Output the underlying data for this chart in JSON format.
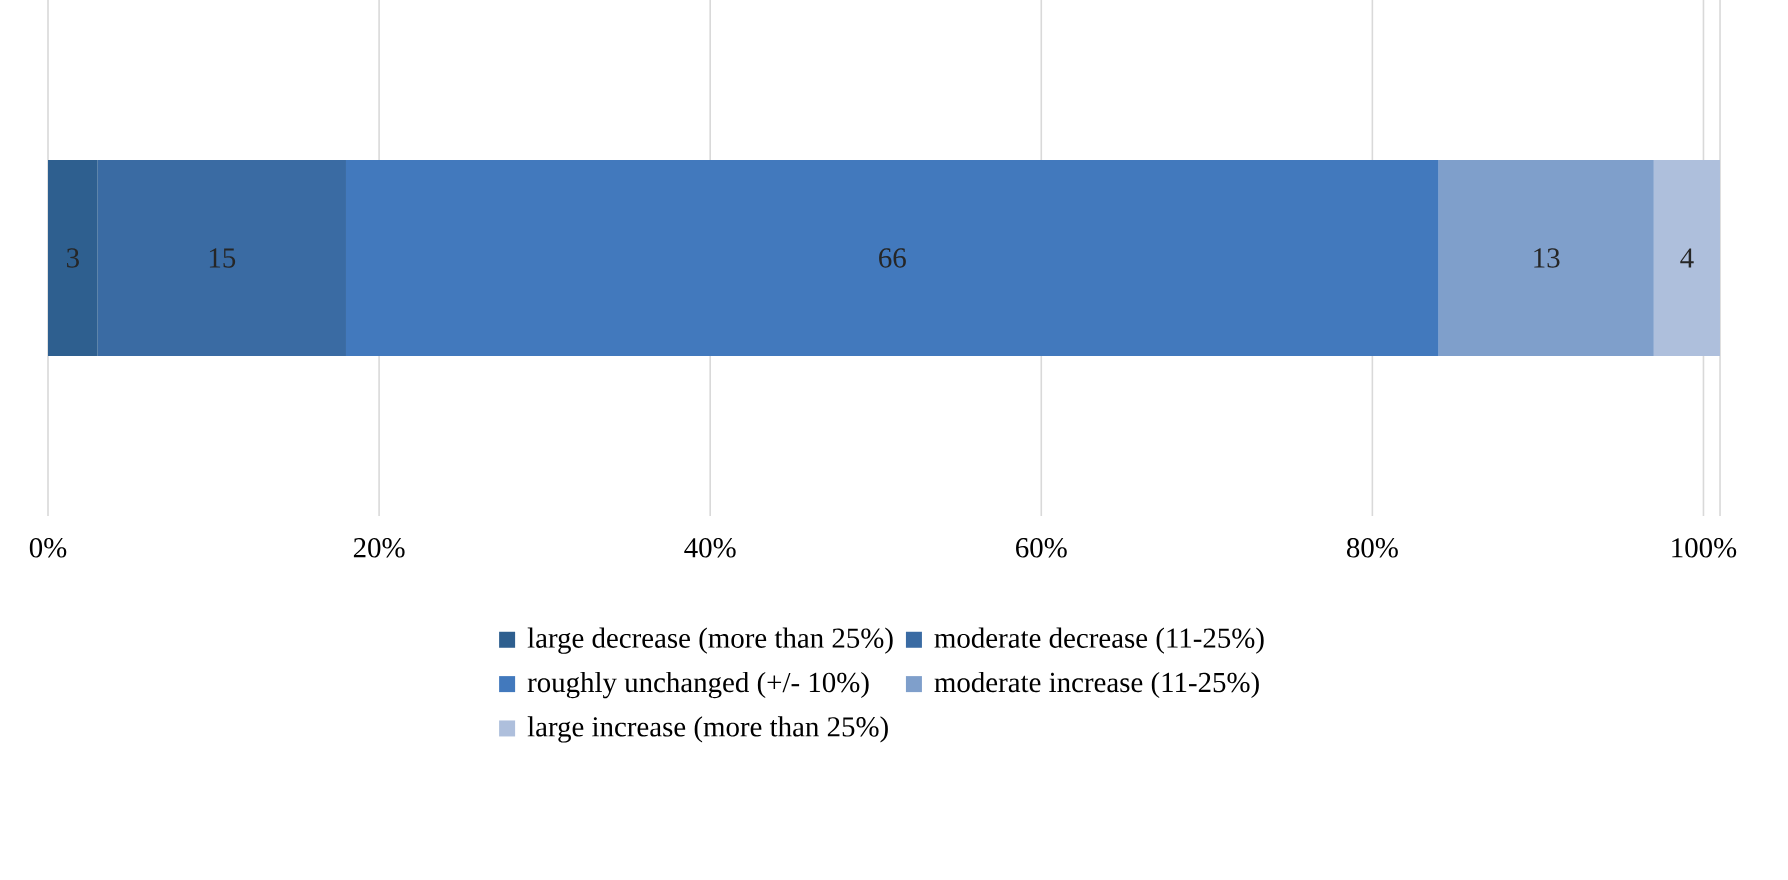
{
  "chart_data": {
    "type": "bar",
    "orientation": "horizontal",
    "stacked": true,
    "categories": [
      null
    ],
    "series": [
      {
        "name": "large decrease (more than 25%)",
        "color": "#2e5f8f",
        "values": [
          3
        ],
        "value_labels": [
          "3"
        ]
      },
      {
        "name": "moderate decrease (11-25%)",
        "color": "#3a6ba3",
        "values": [
          15
        ],
        "value_labels": [
          "15"
        ]
      },
      {
        "name": "roughly unchanged (+/- 10%)",
        "color": "#4279bd",
        "values": [
          66
        ],
        "value_labels": [
          "66"
        ]
      },
      {
        "name": "moderate increase (11-25%)",
        "color": "#7f9fcb",
        "values": [
          13
        ],
        "value_labels": [
          "13"
        ]
      },
      {
        "name": "large increase (more than 25%)",
        "color": "#aebfdc",
        "values": [
          4
        ],
        "value_labels": [
          "4"
        ]
      }
    ],
    "xlim": [
      0,
      101
    ],
    "xticks": [
      {
        "value": 0,
        "label": "0%"
      },
      {
        "value": 20,
        "label": "20%"
      },
      {
        "value": 40,
        "label": "40%"
      },
      {
        "value": 60,
        "label": "60%"
      },
      {
        "value": 80,
        "label": "80%"
      },
      {
        "value": 100,
        "label": "100%"
      },
      {
        "value": 101,
        "label": null
      }
    ],
    "grid": "x",
    "legend": "bottom"
  }
}
